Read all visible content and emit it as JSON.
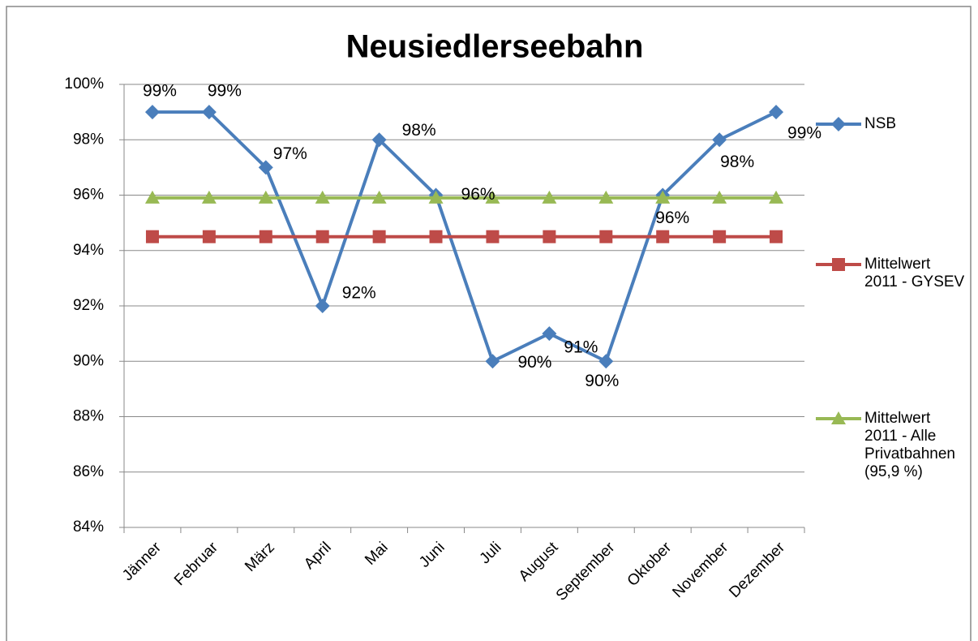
{
  "chart_data": {
    "type": "line",
    "title": "Neusiedlerseebahn",
    "categories": [
      "Jänner",
      "Februar",
      "März",
      "April",
      "Mai",
      "Juni",
      "Juli",
      "August",
      "September",
      "Oktober",
      "November",
      "Dezember"
    ],
    "series": [
      {
        "name": "NSB",
        "color": "#4a7ebb",
        "marker": "diamond",
        "values": [
          99,
          99,
          97,
          92,
          98,
          96,
          90,
          91,
          90,
          96,
          98,
          99
        ],
        "value_labels": [
          "99%",
          "99%",
          "97%",
          "92%",
          "98%",
          "96%",
          "90%",
          "91%",
          "90%",
          "96%",
          "98%",
          "99%"
        ]
      },
      {
        "name": "Mittelwert 2011 - GYSEV",
        "color": "#be4b48",
        "marker": "square",
        "values": [
          94.5,
          94.5,
          94.5,
          94.5,
          94.5,
          94.5,
          94.5,
          94.5,
          94.5,
          94.5,
          94.5,
          94.5
        ]
      },
      {
        "name": "Mittelwert 2011 - Alle Privatbahnen (95,9 %)",
        "color": "#98b954",
        "marker": "triangle",
        "values": [
          95.9,
          95.9,
          95.9,
          95.9,
          95.9,
          95.9,
          95.9,
          95.9,
          95.9,
          95.9,
          95.9,
          95.9
        ]
      }
    ],
    "ylim": [
      84,
      100
    ],
    "yticks": [
      {
        "value": 84,
        "label": "84%"
      },
      {
        "value": 86,
        "label": "86%"
      },
      {
        "value": 88,
        "label": "88%"
      },
      {
        "value": 90,
        "label": "90%"
      },
      {
        "value": 92,
        "label": "92%"
      },
      {
        "value": 94,
        "label": "94%"
      },
      {
        "value": 96,
        "label": "96%"
      },
      {
        "value": 98,
        "label": "98%"
      },
      {
        "value": 100,
        "label": "100%"
      }
    ],
    "grid": true,
    "legend": "right"
  }
}
